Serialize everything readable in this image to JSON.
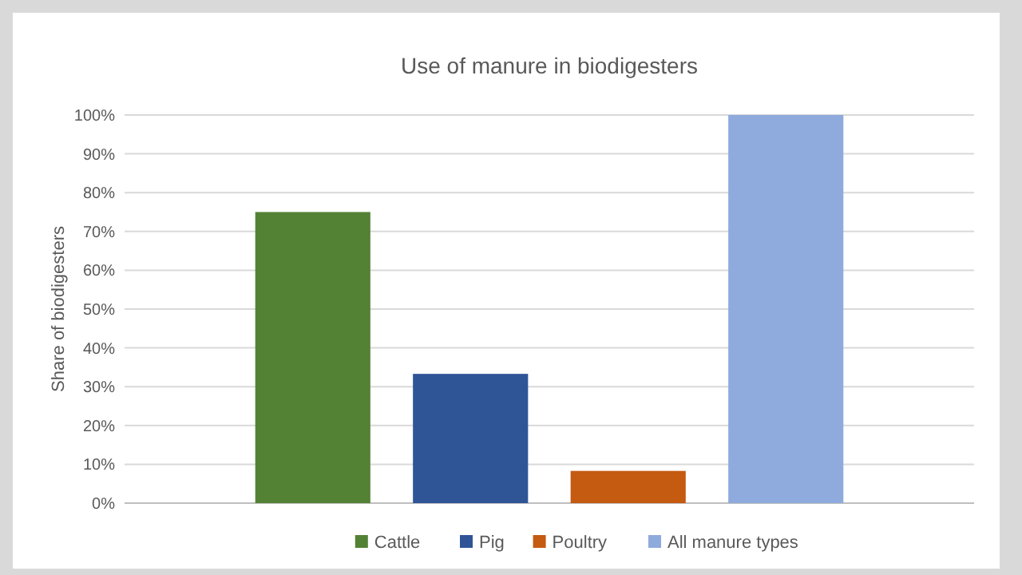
{
  "chart_data": {
    "type": "bar",
    "title": "Use of manure in biodigesters",
    "ylabel": "Share of biodigesters",
    "categories": [
      null
    ],
    "series": [
      {
        "name": "Cattle",
        "color": "#548235",
        "values": [
          75
        ]
      },
      {
        "name": "Pig",
        "color": "#2f5597",
        "values": [
          33.3
        ]
      },
      {
        "name": "Poultry",
        "color": "#c55a11",
        "values": [
          8.3
        ]
      },
      {
        "name": "All manure types",
        "color": "#8faadc",
        "values": [
          100
        ]
      }
    ],
    "ylim": [
      0,
      100
    ],
    "yticks": [
      {
        "value": 0,
        "label": "0%"
      },
      {
        "value": 10,
        "label": "10%"
      },
      {
        "value": 20,
        "label": "20%"
      },
      {
        "value": 30,
        "label": "30%"
      },
      {
        "value": 40,
        "label": "40%"
      },
      {
        "value": 50,
        "label": "50%"
      },
      {
        "value": 60,
        "label": "60%"
      },
      {
        "value": 70,
        "label": "70%"
      },
      {
        "value": 80,
        "label": "80%"
      },
      {
        "value": 90,
        "label": "90%"
      },
      {
        "value": 100,
        "label": "100%"
      }
    ],
    "grid": "y",
    "legend": "bottom"
  }
}
